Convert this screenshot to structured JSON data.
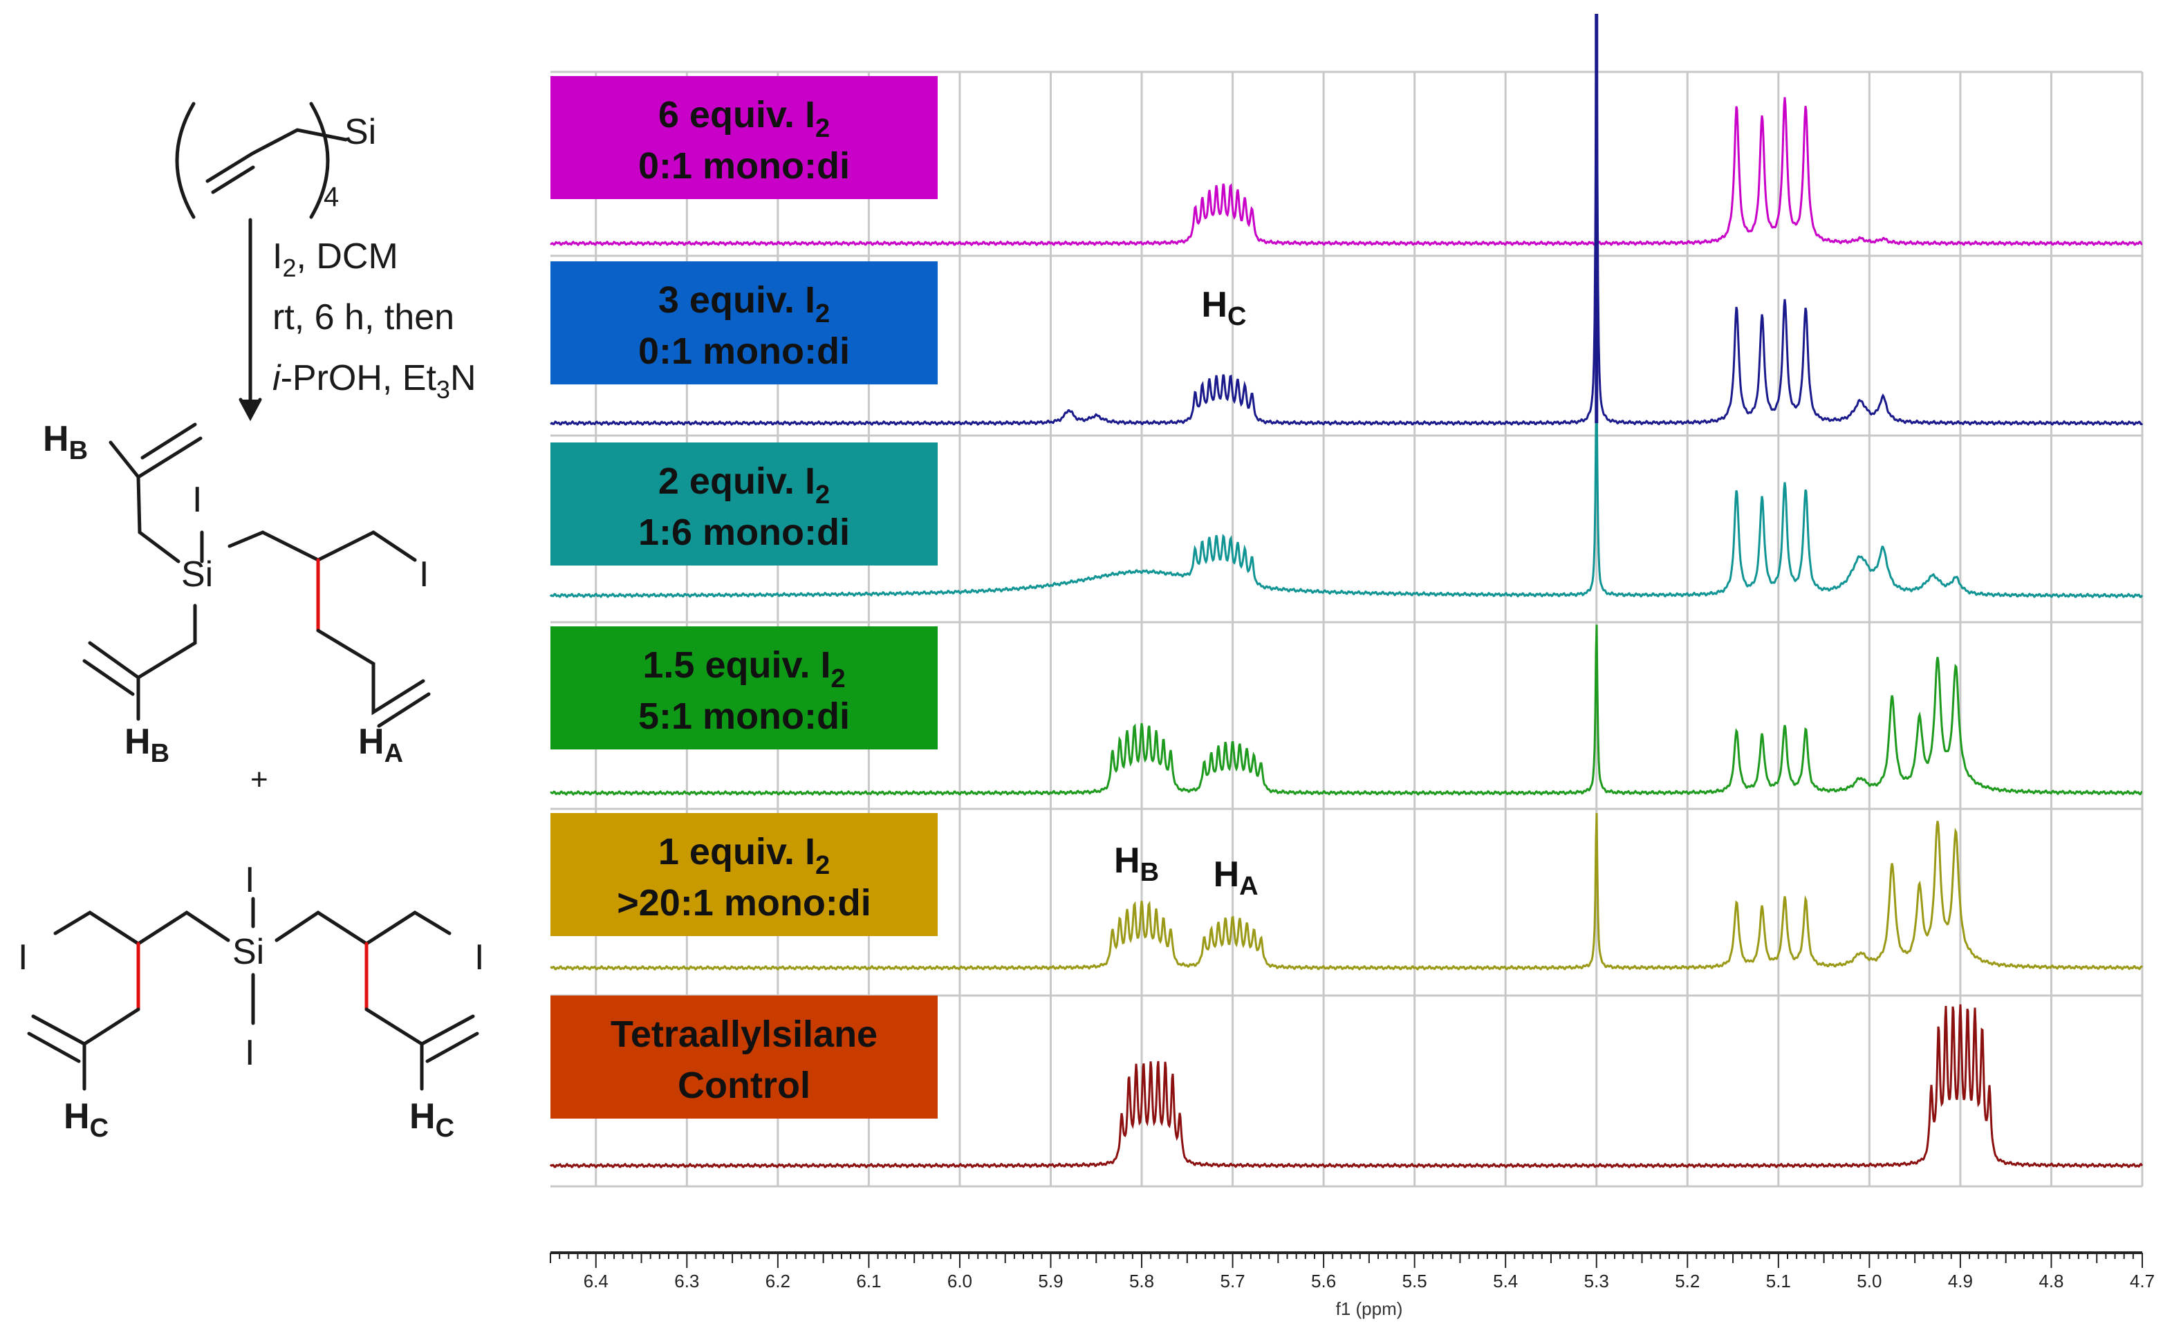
{
  "scheme": {
    "reactant": {
      "si": "Si",
      "subscript": "4"
    },
    "conditions": {
      "line1_main": "I",
      "line1_sub": "2",
      "line1_rest": ", DCM",
      "line2": "rt, 6 h, then",
      "line3_italic": "i",
      "line3_rest": "-PrOH, Et",
      "line3_sub": "3",
      "line3_end": "N"
    },
    "mono_product": {
      "si": "Si",
      "iodo": "I",
      "hb_main": "H",
      "hb_sub": "B",
      "ha_main": "H",
      "ha_sub": "A"
    },
    "plus": "+",
    "di_product": {
      "si": "Si",
      "iodo": "I",
      "hc_main": "H",
      "hc_sub": "C"
    }
  },
  "colors": {
    "magenta": "#c800c8",
    "navy": "#1a1a8c",
    "teal": "#109494",
    "green": "#1e9a1e",
    "olive": "#9a9a18",
    "darkred": "#8c1010",
    "bond_red": "#e01010",
    "grid": "#c8c8c8"
  },
  "chart_data": {
    "type": "line",
    "xlabel": "f1 (ppm)",
    "xlim": [
      6.45,
      4.7
    ],
    "x_ticks": [
      "6.4",
      "6.3",
      "6.2",
      "6.1",
      "6.0",
      "5.9",
      "5.8",
      "5.7",
      "5.6",
      "5.5",
      "5.4",
      "5.3",
      "5.2",
      "5.1",
      "5.0",
      "4.9",
      "4.8",
      "4.7"
    ],
    "grid": true,
    "traces": [
      {
        "label_line1": "6 equiv. I",
        "label_sub": "2",
        "label_line2": "0:1 mono:di",
        "color": "#c800c8"
      },
      {
        "label_line1": "3 equiv. I",
        "label_sub": "2",
        "label_line2": "0:1 mono:di",
        "color": "#1a1a8c"
      },
      {
        "label_line1": "2 equiv. I",
        "label_sub": "2",
        "label_line2": "1:6 mono:di",
        "color": "#109494"
      },
      {
        "label_line1": "1.5 equiv. I",
        "label_sub": "2",
        "label_line2": "5:1 mono:di",
        "color": "#1e9a1e"
      },
      {
        "label_line1": "1 equiv. I",
        "label_sub": "2",
        "label_line2": ">20:1 mono:di",
        "color": "#9a9a18"
      },
      {
        "label_line1": "Tetraallylsilane",
        "label_sub": "",
        "label_line2": "Control",
        "color": "#8c1010"
      }
    ],
    "label_box_colors": [
      "#c800c8",
      "#0a62c8",
      "#109494",
      "#0e9a16",
      "#c89a00",
      "#c83c00"
    ],
    "annotations": [
      {
        "main": "H",
        "sub": "C",
        "ppm": 5.71
      },
      {
        "main": "H",
        "sub": "B",
        "ppm": 5.8
      },
      {
        "main": "H",
        "sub": "A",
        "ppm": 5.7
      }
    ]
  }
}
